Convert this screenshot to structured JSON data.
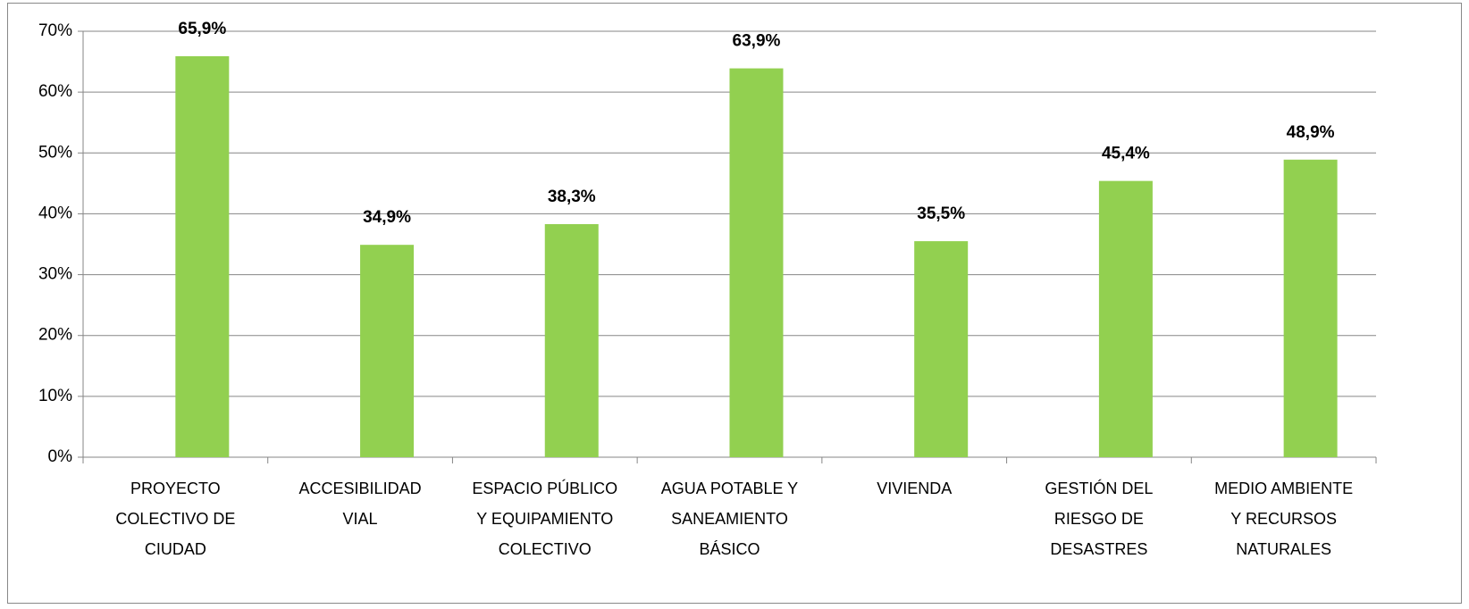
{
  "chart_data": {
    "type": "bar",
    "categories": [
      "PROYECTO\nCOLECTIVO DE\nCIUDAD",
      "ACCESIBILIDAD\nVIAL",
      "ESPACIO PÚBLICO\nY EQUIPAMIENTO\nCOLECTIVO",
      "AGUA POTABLE Y\nSANEAMIENTO\nBÁSICO",
      "VIVIENDA",
      "GESTIÓN DEL\nRIESGO DE\nDESASTRES",
      "MEDIO AMBIENTE\nY RECURSOS\nNATURALES"
    ],
    "values": [
      65.9,
      34.9,
      38.3,
      63.9,
      35.5,
      45.4,
      48.9
    ],
    "value_labels": [
      "65,9%",
      "34,9%",
      "38,3%",
      "63,9%",
      "35,5%",
      "45,4%",
      "48,9%"
    ],
    "color": "#92d050",
    "ylim": [
      0,
      70
    ],
    "yticks": [
      {
        "value": 0,
        "label": "0%"
      },
      {
        "value": 10,
        "label": "10%"
      },
      {
        "value": 20,
        "label": "20%"
      },
      {
        "value": 30,
        "label": "30%"
      },
      {
        "value": 40,
        "label": "40%"
      },
      {
        "value": 50,
        "label": "50%"
      },
      {
        "value": 60,
        "label": "60%"
      },
      {
        "value": 70,
        "label": "70%"
      }
    ],
    "grid": true
  }
}
